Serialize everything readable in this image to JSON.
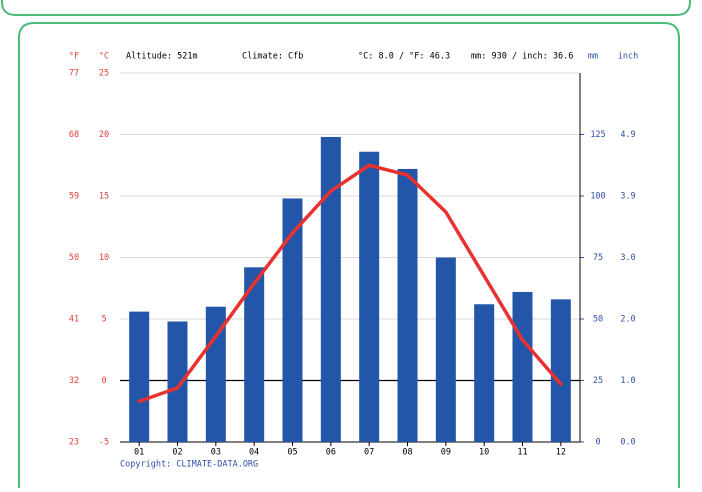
{
  "chart_data": {
    "type": "climate",
    "header": [
      "Altitude: 521m",
      "Climate: Cfb",
      "°C: 8.0 / °F: 46.3",
      "mm: 930 / inch: 36.6"
    ],
    "left_units": [
      "°F",
      "°C"
    ],
    "right_units": [
      "mm",
      "inch"
    ],
    "copyright": "Copyright: CLIMATE-DATA.ORG",
    "categories": [
      "01",
      "02",
      "03",
      "04",
      "05",
      "06",
      "07",
      "08",
      "09",
      "10",
      "11",
      "12"
    ],
    "series": [
      {
        "name": "mm",
        "type": "bar",
        "axis": "y2",
        "color": "#2356a8",
        "values": [
          53,
          49,
          55,
          71,
          99,
          124,
          118,
          111,
          75,
          56,
          61,
          58
        ]
      },
      {
        "name": "°C",
        "type": "line",
        "axis": "y",
        "color": "#e8322f",
        "values": [
          -1.7,
          -0.6,
          3.6,
          7.9,
          12.0,
          15.4,
          17.5,
          16.7,
          13.7,
          8.5,
          3.3,
          -0.3
        ]
      }
    ],
    "ylim": [
      -5,
      25
    ],
    "yticks": [
      -5,
      0,
      5,
      10,
      15,
      20,
      25
    ],
    "fahrenheit_labels": [
      23,
      32,
      41,
      50,
      59,
      68,
      77
    ],
    "y2lim": [
      0,
      150
    ],
    "y2ticks": [
      0,
      25,
      50,
      75,
      100,
      125
    ],
    "inch_labels": [
      "0.0",
      "1.0",
      "2.0",
      "3.0",
      "3.9",
      "4.9"
    ],
    "grid": true
  }
}
